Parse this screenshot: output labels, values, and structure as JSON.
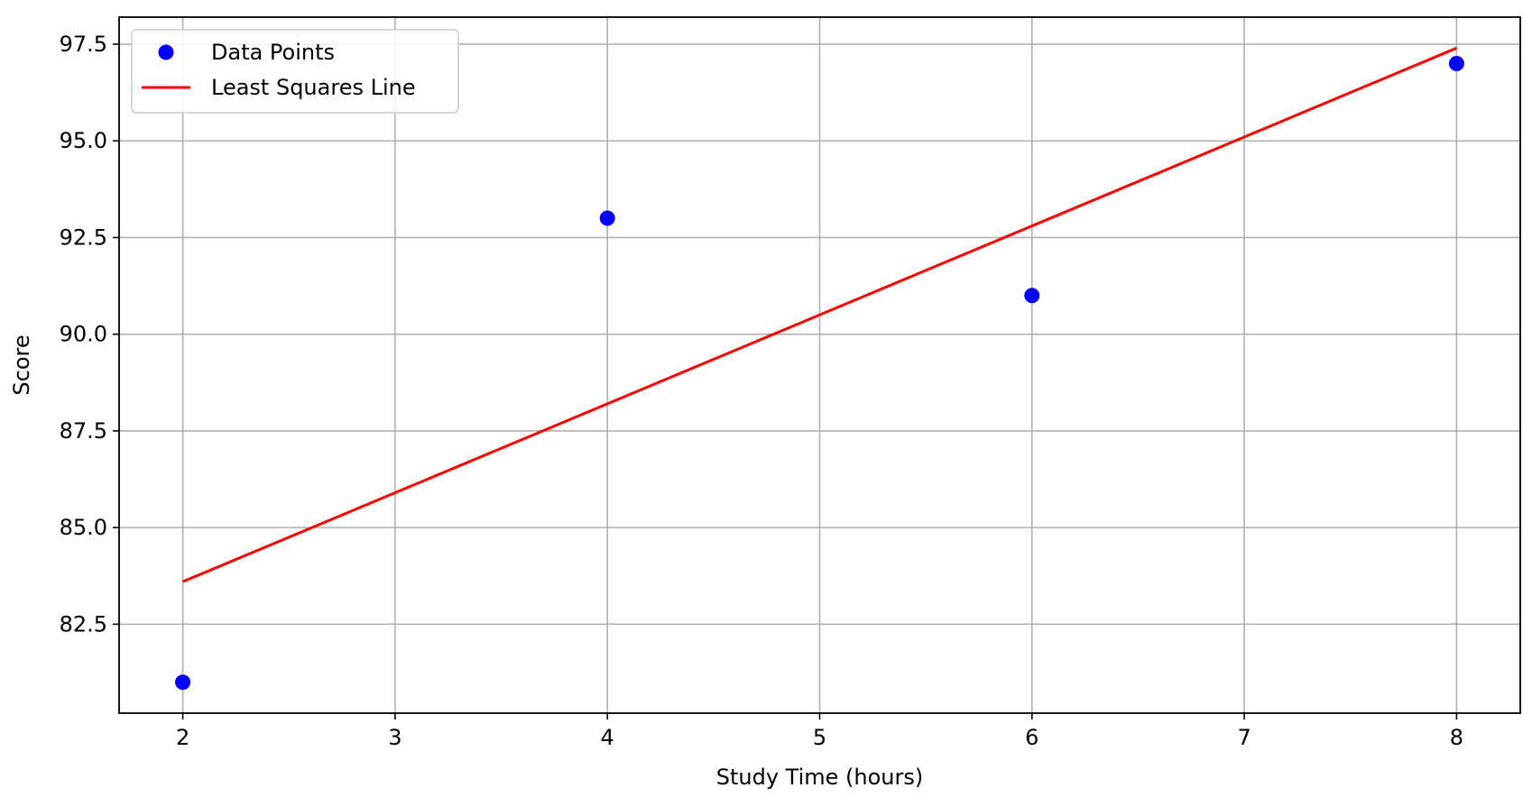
{
  "chart_data": {
    "type": "scatter",
    "title": "",
    "xlabel": "Study Time (hours)",
    "ylabel": "Score",
    "xlim": [
      1.7,
      8.3
    ],
    "ylim": [
      80.2,
      98.2
    ],
    "grid": true,
    "legend": {
      "placement": "upper-left",
      "entries": [
        "Data Points",
        "Least Squares Line"
      ]
    },
    "x_ticks": [
      2,
      3,
      4,
      5,
      6,
      7,
      8
    ],
    "x_tick_labels": [
      "2",
      "3",
      "4",
      "5",
      "6",
      "7",
      "8"
    ],
    "y_ticks": [
      82.5,
      85.0,
      87.5,
      90.0,
      92.5,
      95.0,
      97.5
    ],
    "y_tick_labels": [
      "82.5",
      "85.0",
      "87.5",
      "90.0",
      "92.5",
      "95.0",
      "97.5"
    ],
    "series": [
      {
        "name": "Data Points",
        "kind": "scatter",
        "color": "#0000ff",
        "x": [
          2,
          4,
          6,
          8
        ],
        "y": [
          81,
          93,
          91,
          97
        ]
      },
      {
        "name": "Least Squares Line",
        "kind": "line",
        "color": "#ff0000",
        "x": [
          2,
          8
        ],
        "y": [
          83.6,
          97.4
        ]
      }
    ]
  }
}
